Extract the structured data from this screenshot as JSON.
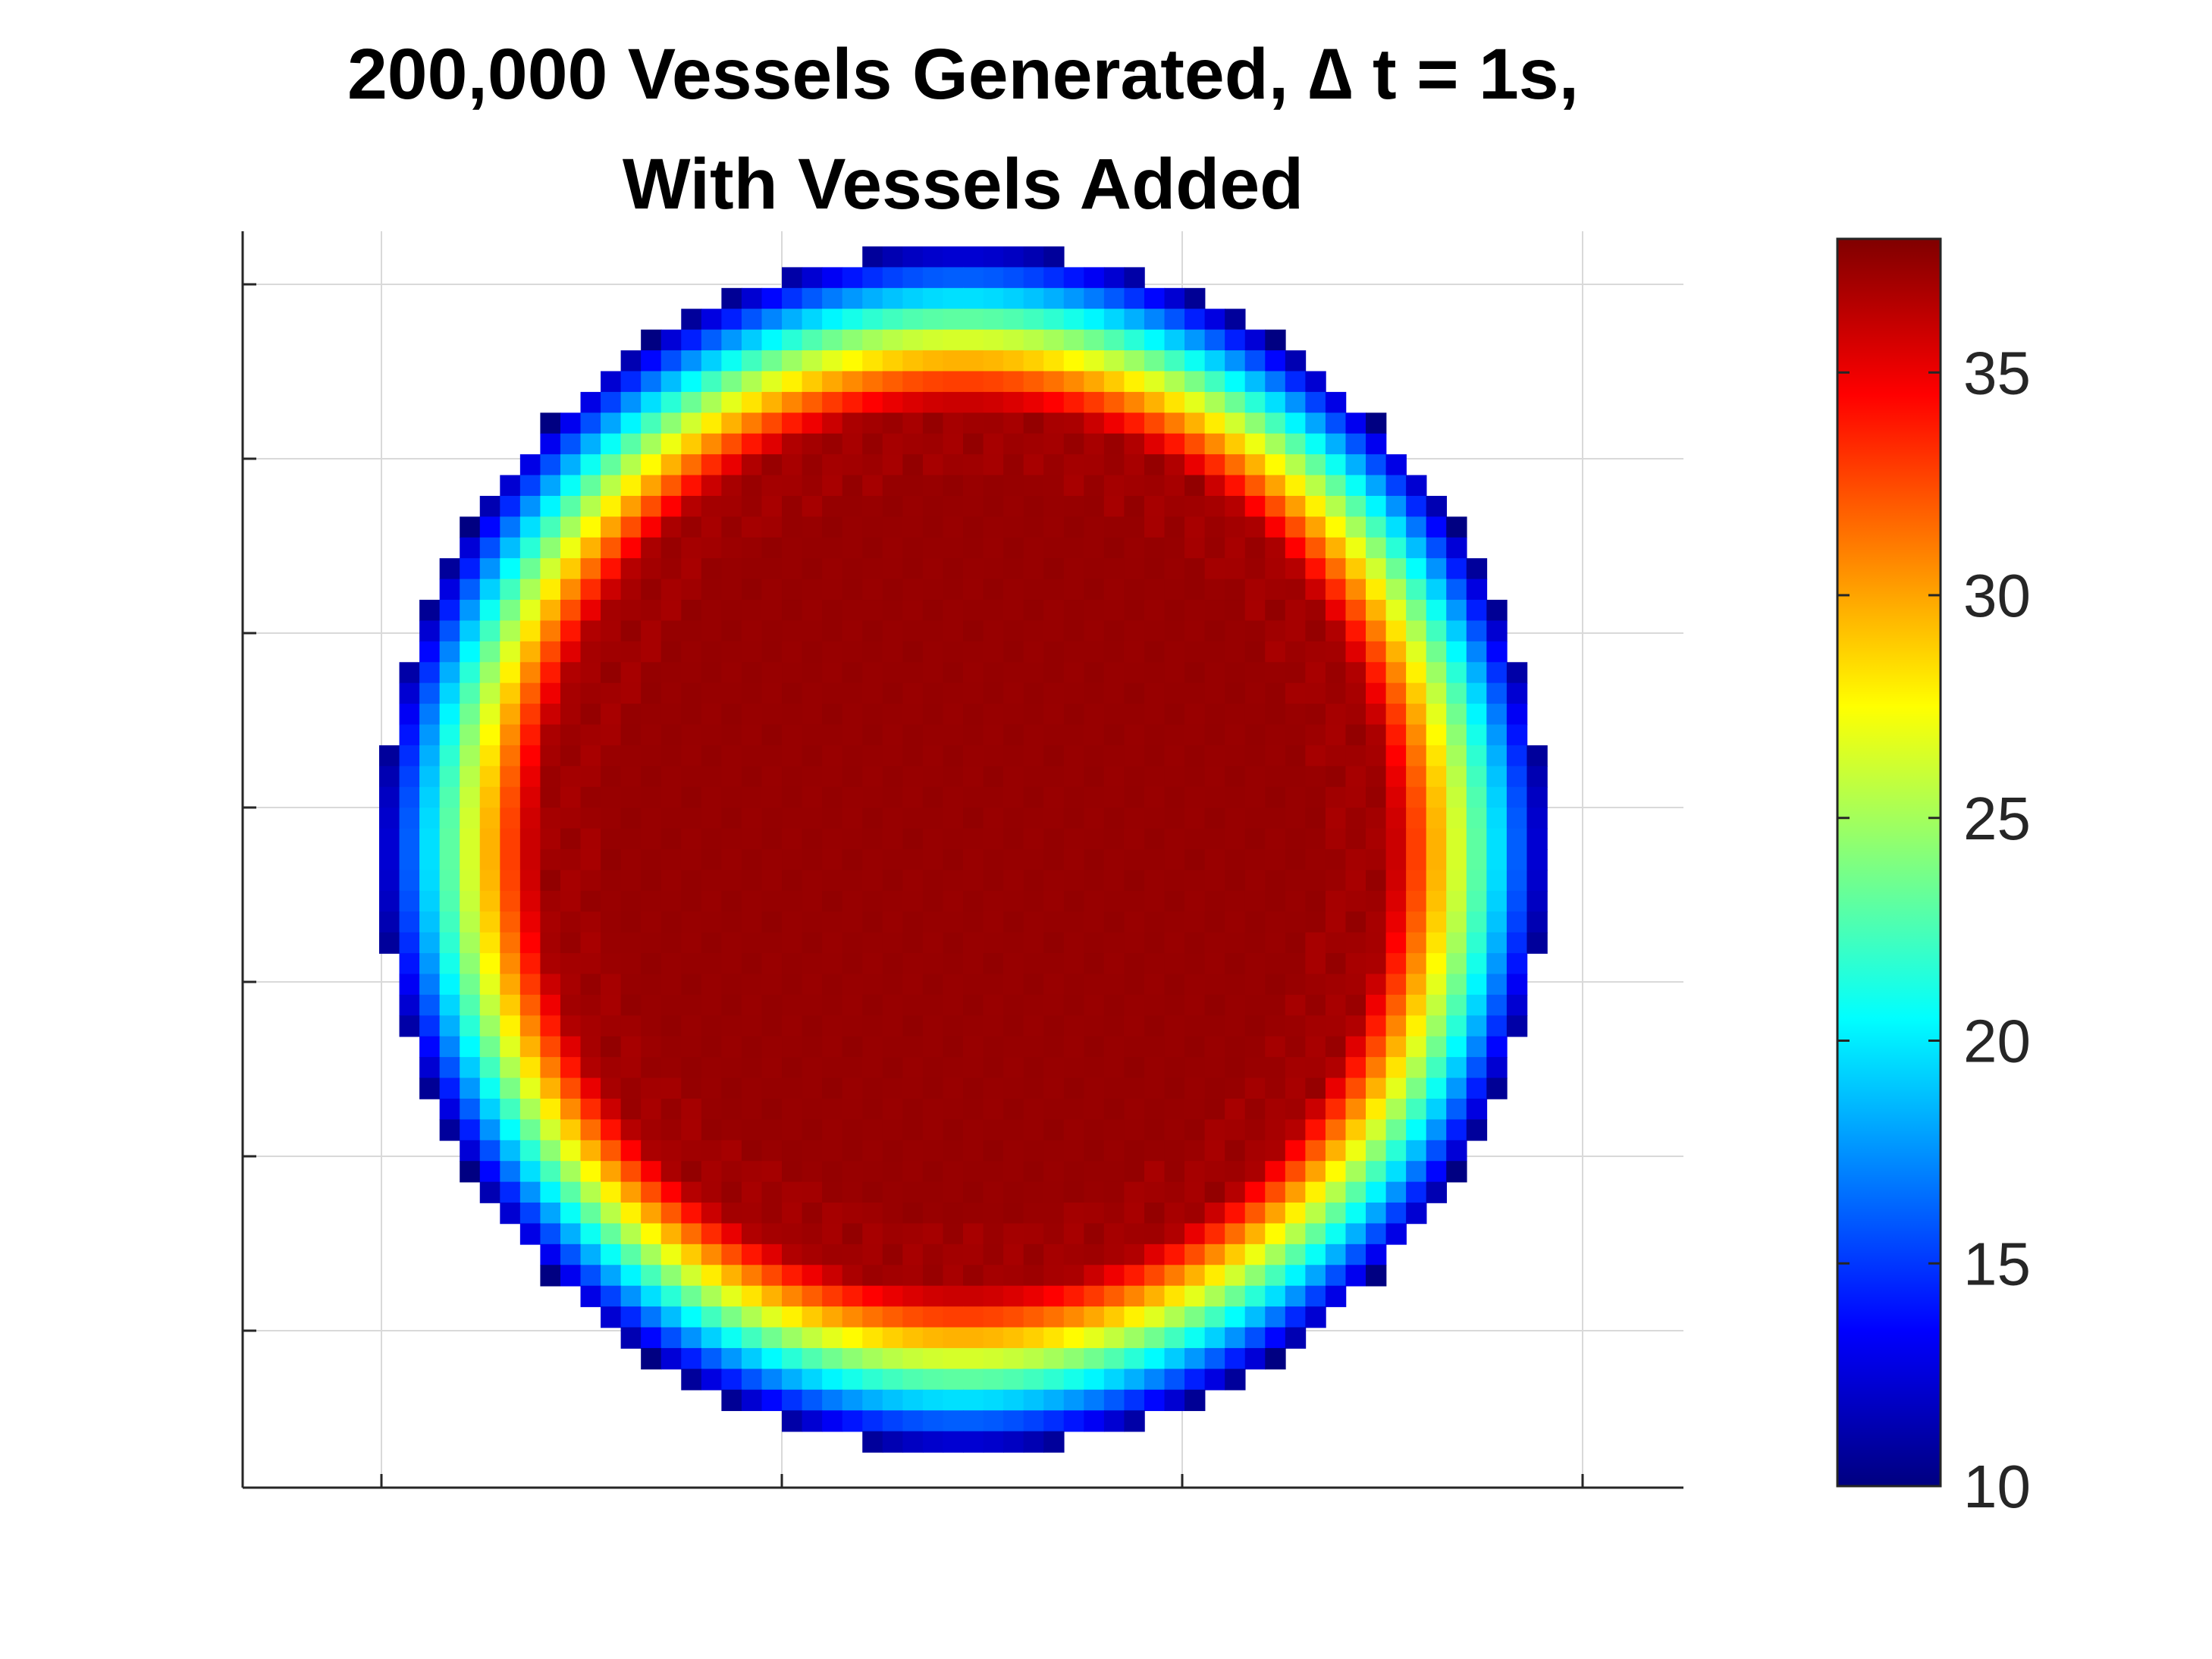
{
  "chart_data": {
    "type": "heatmap",
    "title_lines": [
      "200,000 Vessels Generated, ∆ t = 1s,",
      "With Vessels Added"
    ],
    "xlabel": "",
    "ylabel": "",
    "grid": true,
    "x_tick_labels_shown": false,
    "y_tick_labels_shown": false,
    "colormap": "jet",
    "colorbar": {
      "location": "right",
      "range": [
        10,
        38
      ],
      "ticks": [
        10,
        15,
        20,
        25,
        30,
        35
      ],
      "tick_labels": [
        "10",
        "15",
        "20",
        "25",
        "30",
        "35"
      ]
    },
    "field": {
      "shape": "disk",
      "grid_cells": 58,
      "edge_value": 10,
      "core_value": 37.5,
      "ring_width_cells": 8,
      "description_of_values": "temperature-like scalar: ~10 at disk boundary rising through cyan/yellow to ~37.5 in the dark-red interior; background outside the disk is empty (white)"
    },
    "colors": {
      "jet_stops": [
        "#000080",
        "#0000ff",
        "#00ffff",
        "#ffff00",
        "#ff0000",
        "#800000"
      ],
      "axes_line": "#262626",
      "grid_line": "#d9d9d9"
    }
  }
}
